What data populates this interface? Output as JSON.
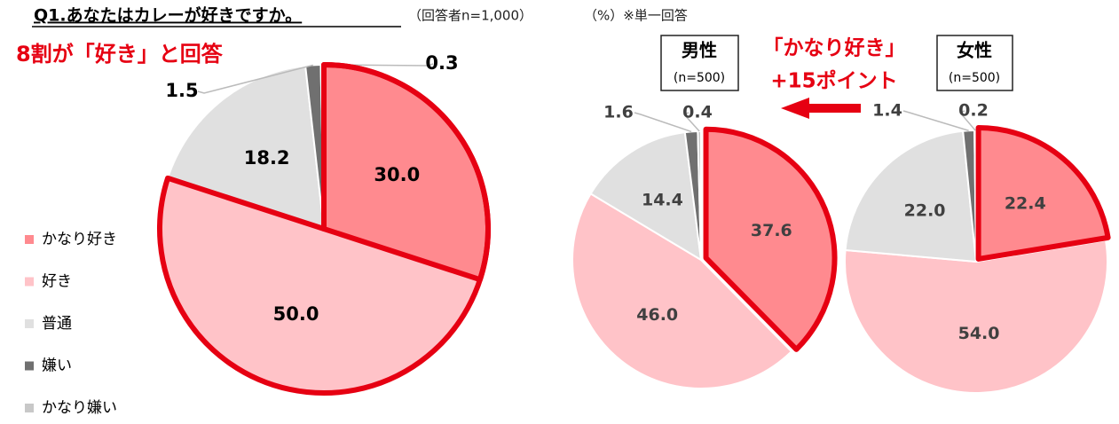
{
  "chart_data": [
    {
      "type": "pie",
      "title": "Q1.あなたはカレーが好きですか。",
      "subtitle": "（回答者n=1,000）",
      "unit_note": "（%）※単一回答",
      "annotation": "8割が「好き」と回答",
      "categories": [
        "かなり好き",
        "好き",
        "普通",
        "嫌い",
        "かなり嫌い"
      ],
      "colors": [
        "#ff8a8f",
        "#ffc3c8",
        "#e0e0e0",
        "#707070",
        "#c8c8c8"
      ],
      "values": [
        30.0,
        50.0,
        18.2,
        1.5,
        0.3
      ],
      "value_labels": [
        "30.0",
        "50.0",
        "18.2",
        "1.5",
        "0.3"
      ]
    },
    {
      "type": "pie",
      "title": "男性",
      "subtitle": "(n=500)",
      "annotation": [
        "「かなり好き」",
        "+15ポイント"
      ],
      "values": [
        37.6,
        46.0,
        14.4,
        1.6,
        0.4
      ],
      "value_labels": [
        "37.6",
        "46.0",
        "14.4",
        "1.6",
        "0.4"
      ]
    },
    {
      "type": "pie",
      "title": "女性",
      "subtitle": "(n=500)",
      "values": [
        22.4,
        54.0,
        22.0,
        1.4,
        0.2
      ],
      "value_labels": [
        "22.4",
        "54.0",
        "22.0",
        "1.4",
        "0.2"
      ]
    }
  ]
}
